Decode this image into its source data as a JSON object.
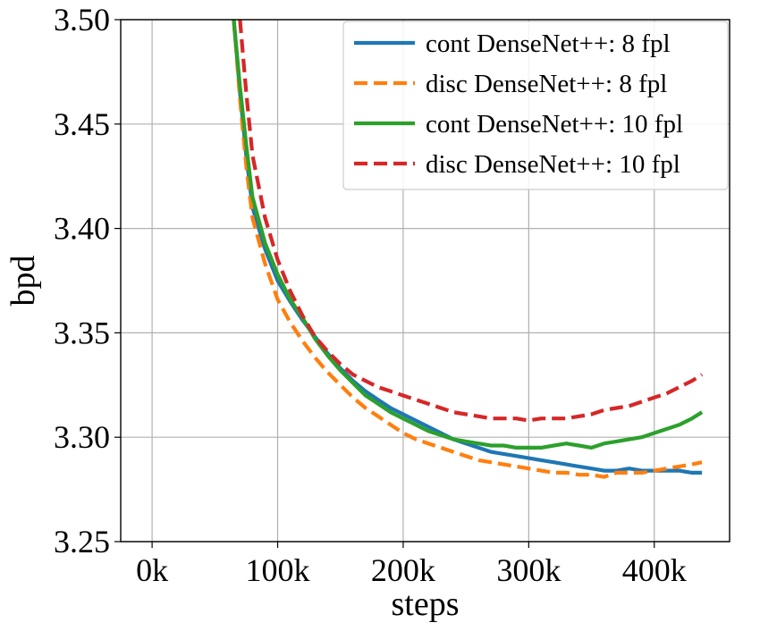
{
  "chart_data": {
    "type": "line",
    "title": "",
    "xlabel": "steps",
    "ylabel": "bpd",
    "xlim": [
      -25000,
      460000
    ],
    "ylim": [
      3.25,
      3.5
    ],
    "xticks": [
      0,
      100000,
      200000,
      300000,
      400000
    ],
    "xtick_labels": [
      "0k",
      "100k",
      "200k",
      "300k",
      "400k"
    ],
    "yticks": [
      3.25,
      3.3,
      3.35,
      3.4,
      3.45,
      3.5
    ],
    "ytick_labels": [
      "3.25",
      "3.30",
      "3.35",
      "3.40",
      "3.45",
      "3.50"
    ],
    "grid": true,
    "legend_position": "top-right",
    "series": [
      {
        "name": "cont DenseNet++: 8 fpl",
        "color": "#1f77b4",
        "dash": "solid",
        "x": [
          65000,
          70000,
          75000,
          80000,
          90000,
          100000,
          110000,
          120000,
          130000,
          140000,
          150000,
          160000,
          170000,
          180000,
          190000,
          200000,
          210000,
          220000,
          230000,
          240000,
          250000,
          260000,
          270000,
          280000,
          290000,
          300000,
          310000,
          320000,
          330000,
          340000,
          350000,
          360000,
          370000,
          380000,
          390000,
          400000,
          410000,
          420000,
          430000,
          438000
        ],
        "y": [
          3.5,
          3.465,
          3.435,
          3.41,
          3.39,
          3.375,
          3.365,
          3.356,
          3.348,
          3.34,
          3.333,
          3.327,
          3.322,
          3.318,
          3.314,
          3.311,
          3.308,
          3.305,
          3.302,
          3.299,
          3.297,
          3.295,
          3.293,
          3.292,
          3.291,
          3.29,
          3.289,
          3.288,
          3.287,
          3.286,
          3.285,
          3.284,
          3.284,
          3.285,
          3.284,
          3.284,
          3.284,
          3.284,
          3.283,
          3.283
        ]
      },
      {
        "name": "disc DenseNet++: 8 fpl",
        "color": "#ff7f0e",
        "dash": "dashed",
        "x": [
          65000,
          70000,
          75000,
          80000,
          90000,
          100000,
          110000,
          120000,
          130000,
          140000,
          150000,
          160000,
          170000,
          180000,
          190000,
          200000,
          210000,
          220000,
          230000,
          240000,
          250000,
          260000,
          270000,
          280000,
          290000,
          300000,
          310000,
          320000,
          330000,
          340000,
          350000,
          360000,
          370000,
          380000,
          390000,
          400000,
          410000,
          420000,
          430000,
          438000
        ],
        "y": [
          3.5,
          3.462,
          3.43,
          3.405,
          3.383,
          3.366,
          3.355,
          3.346,
          3.338,
          3.331,
          3.325,
          3.319,
          3.314,
          3.31,
          3.306,
          3.302,
          3.299,
          3.297,
          3.295,
          3.293,
          3.291,
          3.289,
          3.288,
          3.287,
          3.286,
          3.285,
          3.284,
          3.283,
          3.283,
          3.282,
          3.282,
          3.281,
          3.283,
          3.283,
          3.283,
          3.284,
          3.285,
          3.286,
          3.287,
          3.288
        ]
      },
      {
        "name": "cont DenseNet++: 10 fpl",
        "color": "#2ca02c",
        "dash": "solid",
        "x": [
          65000,
          70000,
          75000,
          80000,
          90000,
          100000,
          110000,
          120000,
          130000,
          140000,
          150000,
          160000,
          170000,
          180000,
          190000,
          200000,
          210000,
          220000,
          230000,
          240000,
          250000,
          260000,
          270000,
          280000,
          290000,
          300000,
          310000,
          320000,
          330000,
          340000,
          350000,
          360000,
          370000,
          380000,
          390000,
          400000,
          410000,
          420000,
          430000,
          438000
        ],
        "y": [
          3.5,
          3.468,
          3.44,
          3.415,
          3.393,
          3.378,
          3.366,
          3.357,
          3.347,
          3.339,
          3.332,
          3.326,
          3.32,
          3.316,
          3.312,
          3.309,
          3.306,
          3.303,
          3.301,
          3.299,
          3.298,
          3.297,
          3.296,
          3.296,
          3.295,
          3.295,
          3.295,
          3.296,
          3.297,
          3.296,
          3.295,
          3.297,
          3.298,
          3.299,
          3.3,
          3.302,
          3.304,
          3.306,
          3.309,
          3.312
        ]
      },
      {
        "name": "disc DenseNet++: 10 fpl",
        "color": "#d62728",
        "dash": "dashed",
        "x": [
          70000,
          75000,
          80000,
          90000,
          100000,
          110000,
          120000,
          130000,
          140000,
          150000,
          160000,
          170000,
          180000,
          190000,
          200000,
          210000,
          220000,
          230000,
          240000,
          250000,
          260000,
          270000,
          280000,
          290000,
          300000,
          310000,
          320000,
          330000,
          340000,
          350000,
          360000,
          370000,
          380000,
          390000,
          400000,
          410000,
          420000,
          430000,
          438000
        ],
        "y": [
          3.5,
          3.465,
          3.435,
          3.405,
          3.385,
          3.37,
          3.358,
          3.348,
          3.341,
          3.335,
          3.33,
          3.327,
          3.324,
          3.322,
          3.32,
          3.318,
          3.316,
          3.314,
          3.312,
          3.311,
          3.31,
          3.309,
          3.309,
          3.309,
          3.308,
          3.309,
          3.309,
          3.309,
          3.31,
          3.311,
          3.313,
          3.314,
          3.315,
          3.317,
          3.319,
          3.321,
          3.324,
          3.327,
          3.33
        ]
      }
    ]
  }
}
